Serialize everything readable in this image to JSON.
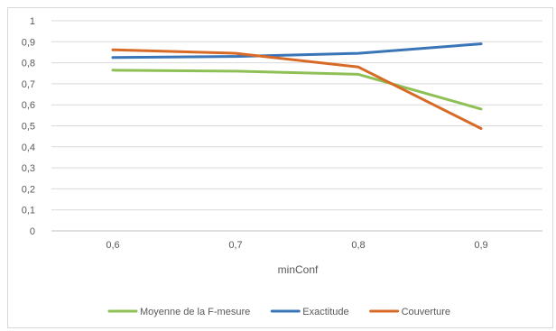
{
  "chart_data": {
    "type": "line",
    "title": "",
    "xlabel": "minConf",
    "ylabel": "",
    "categories": [
      "0,6",
      "0,7",
      "0,8",
      "0,9"
    ],
    "ylim": [
      0,
      1
    ],
    "yticks": [
      "0",
      "0,1",
      "0,2",
      "0,3",
      "0,4",
      "0,5",
      "0,6",
      "0,7",
      "0,8",
      "0,9",
      "1"
    ],
    "grid": "horizontal",
    "legend_position": "bottom",
    "series": [
      {
        "name": "Moyenne de la F-mesure",
        "color": "#8fc056",
        "values": [
          0.765,
          0.76,
          0.745,
          0.58
        ]
      },
      {
        "name": "Exactitude",
        "color": "#3a75b8",
        "values": [
          0.825,
          0.83,
          0.845,
          0.89
        ]
      },
      {
        "name": "Couverture",
        "color": "#d86a27",
        "values": [
          0.862,
          0.845,
          0.78,
          0.487
        ]
      }
    ]
  }
}
